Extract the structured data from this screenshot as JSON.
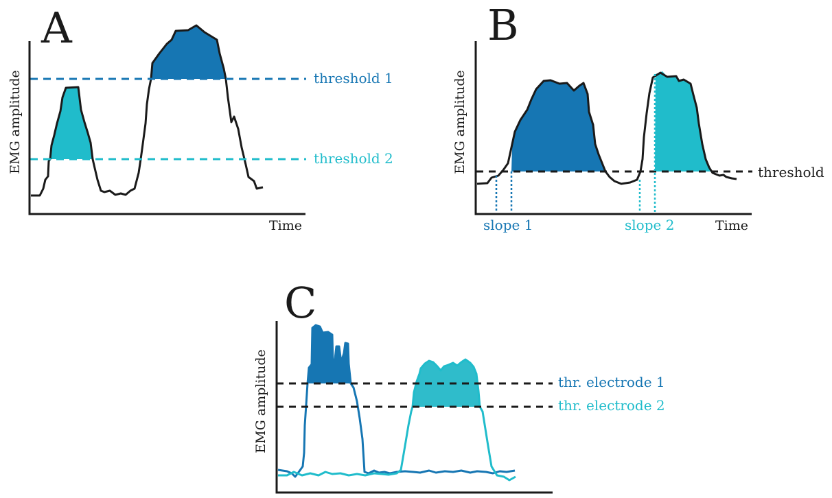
{
  "colors": {
    "dark_blue": "#1676b3",
    "cyan": "#20bccb",
    "ink": "#1a1a1a"
  },
  "panel_a": {
    "letter": "A",
    "ylabel": "EMG amplitude",
    "xlabel": "Time",
    "threshold1_label": "threshold 1",
    "threshold2_label": "threshold 2"
  },
  "panel_b": {
    "letter": "B",
    "ylabel": "EMG amplitude",
    "xlabel": "Time",
    "threshold_label": "threshold",
    "slope1_label": "slope 1",
    "slope2_label": "slope 2"
  },
  "panel_c": {
    "letter": "C",
    "ylabel": "EMG amplitude",
    "thr1_label": "thr. electrode 1",
    "thr2_label": "thr. electrode 2"
  }
}
